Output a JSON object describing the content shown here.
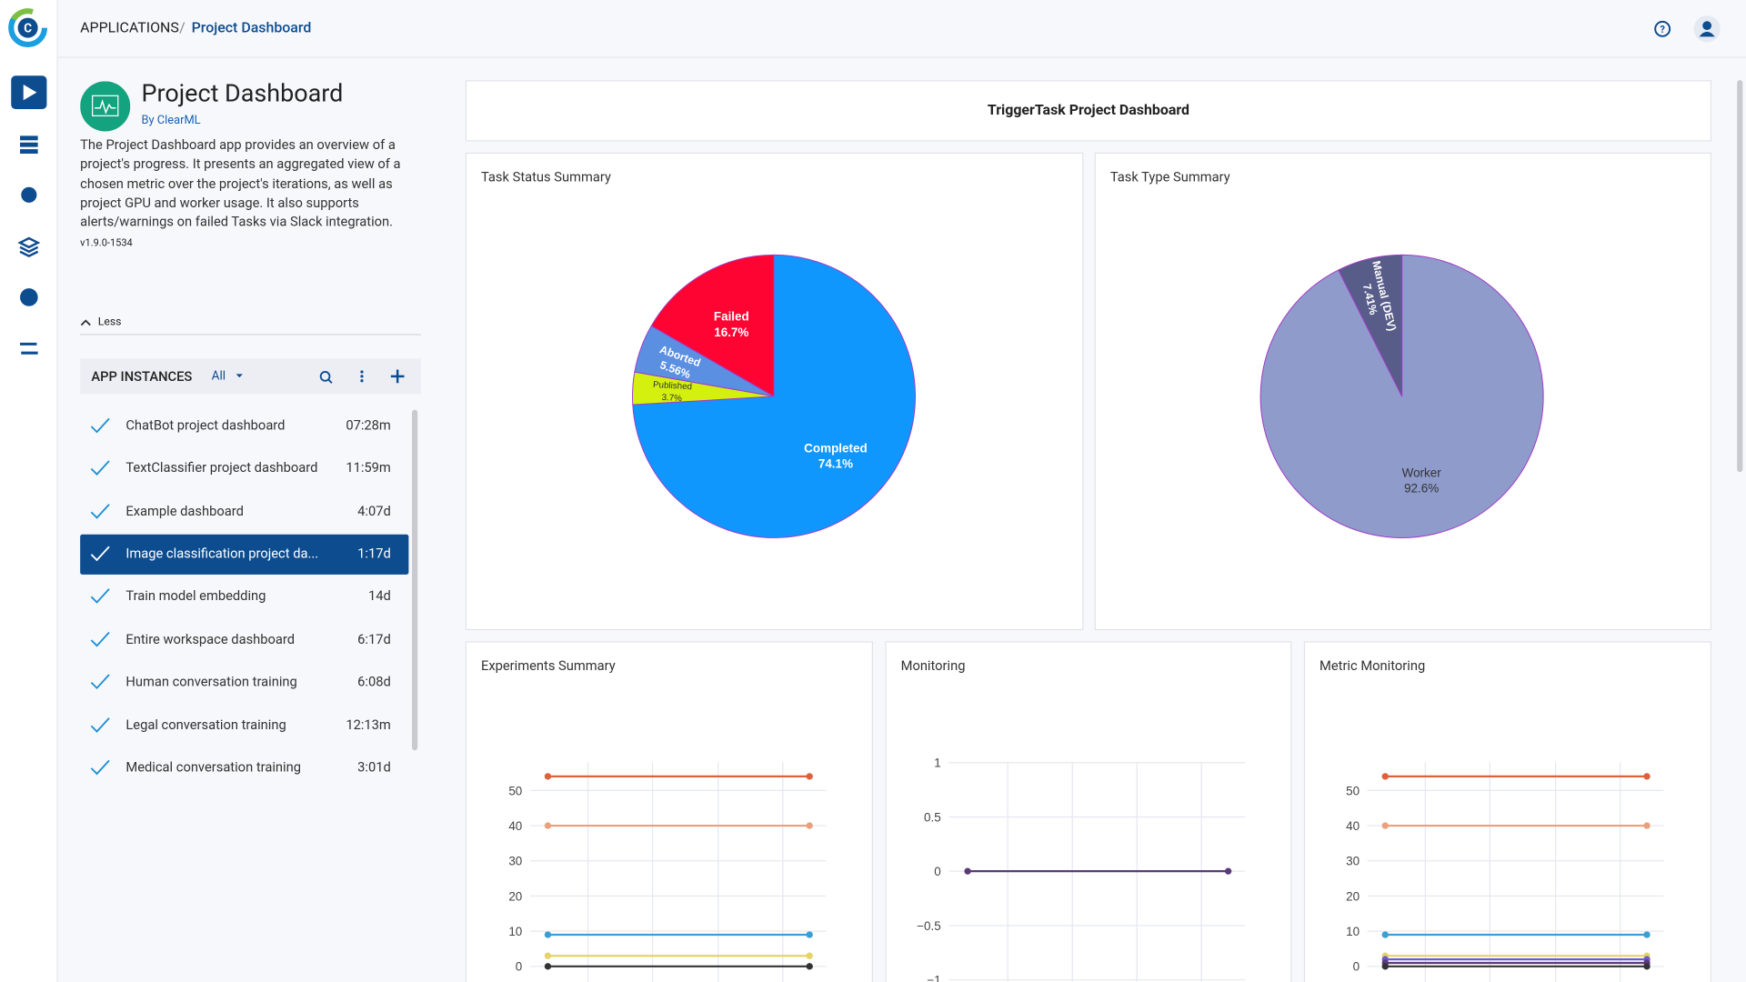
{
  "header": {
    "breadcrumb_root": "APPLICATIONS",
    "breadcrumb_separator": "/",
    "breadcrumb_current": "Project Dashboard"
  },
  "app": {
    "title": "Project Dashboard",
    "author": "By ClearML",
    "description": "The Project Dashboard app provides an overview of a project's progress. It presents an aggregated view of a chosen metric over the project's iterations, as well as project GPU and worker usage. It also supports alerts/warnings on failed Tasks via Slack integration.",
    "version": "v1.9.0-1534",
    "toggle": "Less"
  },
  "app_instances": {
    "title": "APP INSTANCES",
    "filter": "All",
    "items": [
      {
        "name": "ChatBot project dashboard",
        "time": "07:28m"
      },
      {
        "name": "TextClassifier project dashboard",
        "time": "11:59m"
      },
      {
        "name": "Example dashboard",
        "time": "4:07d"
      },
      {
        "name": "Image classification project da...",
        "time": "1:17d",
        "selected": true
      },
      {
        "name": "Train model embedding",
        "time": "14d"
      },
      {
        "name": "Entire workspace dashboard",
        "time": "6:17d"
      },
      {
        "name": "Human conversation training",
        "time": "6:08d"
      },
      {
        "name": "Legal conversation training",
        "time": "12:13m"
      },
      {
        "name": "Medical conversation training",
        "time": "3:01d"
      }
    ]
  },
  "dashboard": {
    "title": "TriggerTask Project Dashboard"
  },
  "chart_data": [
    {
      "type": "pie",
      "title": "Task Status Summary",
      "categories": [
        "Completed",
        "Published",
        "Aborted",
        "Failed"
      ],
      "values": [
        74.1,
        3.7,
        5.56,
        16.7
      ],
      "value_labels": [
        "74.1%",
        "3.7%",
        "5.56%",
        "16.7%"
      ],
      "colors": [
        "#0f97fd",
        "#d3f00f",
        "#5a8fe2",
        "#fe0433"
      ]
    },
    {
      "type": "pie",
      "title": "Task Type Summary",
      "categories": [
        "Worker",
        "Manual (DEV)"
      ],
      "values": [
        92.6,
        7.41
      ],
      "value_labels": [
        "92.6%",
        "7.41%"
      ],
      "colors": [
        "#8e9bcb",
        "#585c88"
      ]
    },
    {
      "type": "line",
      "title": "Experiments Summary",
      "categories": [
        null,
        null
      ],
      "ylim": [
        -2,
        58
      ],
      "yticks": [
        0,
        10,
        20,
        30,
        40,
        50
      ],
      "grid": true,
      "series": [
        {
          "color": "#e0603c",
          "values": [
            54,
            54
          ]
        },
        {
          "color": "#e9a07c",
          "values": [
            40,
            40
          ]
        },
        {
          "color": "#3a9fd2",
          "values": [
            9,
            9
          ]
        },
        {
          "color": "#e6d36a",
          "values": [
            3,
            3
          ]
        },
        {
          "color": "#333333",
          "values": [
            0,
            0
          ]
        }
      ]
    },
    {
      "type": "line",
      "title": "Monitoring",
      "categories": [
        null,
        null
      ],
      "ylim": [
        -1,
        1
      ],
      "yticks": [
        {
          "value": -1,
          "label": "−1"
        },
        {
          "value": -0.5,
          "label": "−0.5"
        },
        0,
        0.5,
        1
      ],
      "grid": true,
      "series": [
        {
          "color": "#5b3a7a",
          "values": [
            0,
            0
          ]
        }
      ]
    },
    {
      "type": "line",
      "title": "Metric Monitoring",
      "categories": [
        null,
        null
      ],
      "ylim": [
        -2,
        58
      ],
      "yticks": [
        0,
        10,
        20,
        30,
        40,
        50
      ],
      "grid": true,
      "series": [
        {
          "color": "#e0603c",
          "values": [
            54,
            54
          ]
        },
        {
          "color": "#e9a07c",
          "values": [
            40,
            40
          ]
        },
        {
          "color": "#3a9fd2",
          "values": [
            9,
            9
          ]
        },
        {
          "color": "#e6d36a",
          "values": [
            3,
            3
          ]
        },
        {
          "color": "#6a5acd",
          "values": [
            2,
            2
          ]
        },
        {
          "color": "#5b3a7a",
          "values": [
            1,
            1
          ]
        },
        {
          "color": "#333333",
          "values": [
            0,
            0
          ]
        }
      ]
    }
  ]
}
